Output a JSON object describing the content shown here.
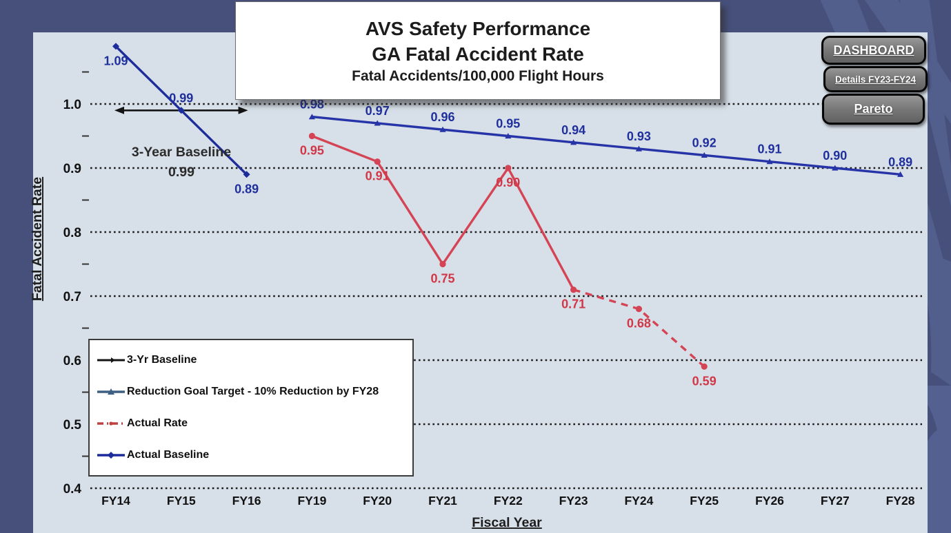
{
  "window": {
    "background_color": "#46507a",
    "plot_background_color": "#d7dfe8"
  },
  "title_box": {
    "line1": "AVS Safety Performance",
    "line2": "GA Fatal Accident Rate",
    "line3": "Fatal Accidents/100,000 Flight Hours"
  },
  "nav_buttons": {
    "dashboard": "DASHBOARD",
    "details": "Details FY23-FY24",
    "pareto": "Pareto"
  },
  "chart_data": {
    "type": "line",
    "title": "AVS Safety Performance GA Fatal Accident Rate",
    "subtitle": "Fatal Accidents/100,000 Flight Hours",
    "xlabel": "Fiscal Year",
    "ylabel": "Fatal Accident Rate",
    "ylim": [
      0.4,
      1.1
    ],
    "y_tick_labels": [
      "1.0",
      "0.9",
      "0.8",
      "0.7",
      "0.6",
      "0.5",
      "0.4"
    ],
    "grid": "horizontal-dotted",
    "legend_position": "bottom-left",
    "categories": [
      "FY14",
      "FY15",
      "FY16",
      "FY19",
      "FY20",
      "FY21",
      "FY22",
      "FY23",
      "FY24",
      "FY25",
      "FY26",
      "FY27",
      "FY28"
    ],
    "series": [
      {
        "name": "3-Yr Baseline",
        "type": "range-arrow",
        "color": "#141414",
        "x": [
          "FY14",
          "FY16"
        ],
        "value": 0.99,
        "show_labels": false
      },
      {
        "name": "Reduction Goal Target - 10% Reduction by FY28",
        "type": "line",
        "color": "#2634a8",
        "label_color": "#1f2f9c",
        "marker": "triangle",
        "x": [
          "FY19",
          "FY20",
          "FY21",
          "FY22",
          "FY23",
          "FY24",
          "FY25",
          "FY26",
          "FY27",
          "FY28"
        ],
        "values": [
          0.98,
          0.97,
          0.96,
          0.95,
          0.94,
          0.93,
          0.92,
          0.91,
          0.9,
          0.89
        ],
        "label_side": "above"
      },
      {
        "name": "Actual Rate",
        "type": "line",
        "color": "#d44455",
        "label_color": "#d13747",
        "marker": "circle",
        "x": [
          "FY19",
          "FY20",
          "FY21",
          "FY22",
          "FY23",
          "FY24",
          "FY25"
        ],
        "values": [
          0.95,
          0.91,
          0.75,
          0.9,
          0.71,
          0.68,
          0.59
        ],
        "dashed_from_index": 4,
        "label_side": "below"
      },
      {
        "name": "Actual Baseline",
        "type": "line",
        "color": "#1d2c9b",
        "label_color": "#1f2f9c",
        "marker": "diamond",
        "x": [
          "FY14",
          "FY15",
          "FY16"
        ],
        "values": [
          1.09,
          0.99,
          0.89
        ],
        "label_side": [
          "below",
          "above",
          "below"
        ]
      }
    ],
    "annotations": [
      {
        "text": "3-Year Baseline",
        "color": "#2b2b2b"
      },
      {
        "text": "0.99",
        "color": "#2b2b2b"
      }
    ],
    "legend": {
      "entries": [
        {
          "label": "3-Yr Baseline",
          "color": "#141414",
          "style": "solid-line"
        },
        {
          "label": "Reduction Goal Target - 10% Reduction by FY28",
          "color": "#3d5f84",
          "style": "solid-triangle"
        },
        {
          "label": "Actual Rate",
          "color": "#bf4040",
          "style": "dash-dot"
        },
        {
          "label": "Actual Baseline",
          "color": "#1d2c9b",
          "style": "solid-diamond"
        }
      ]
    },
    "value_label_format": "0.00"
  }
}
